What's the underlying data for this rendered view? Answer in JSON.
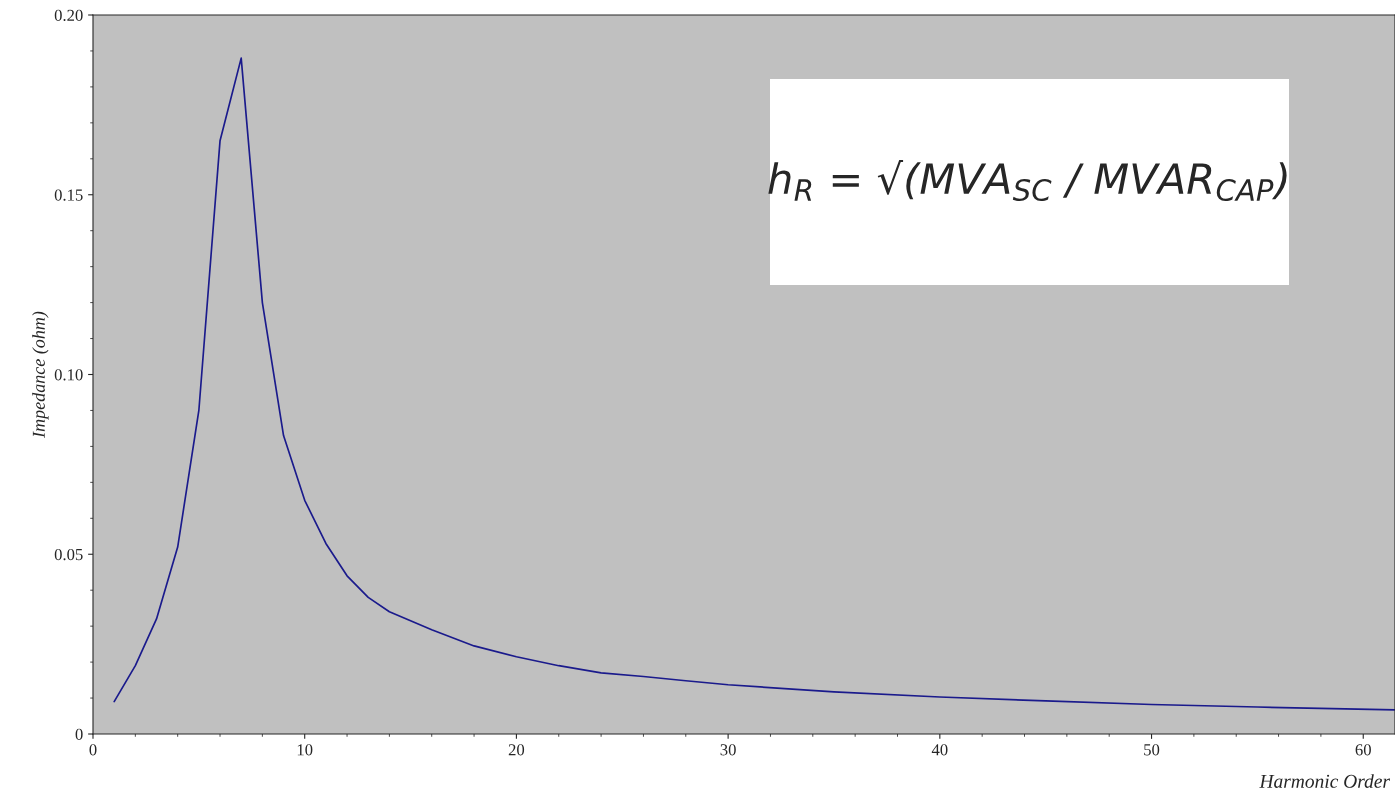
{
  "chart_data": {
    "type": "line",
    "xlabel": "Harmonic Order",
    "ylabel": "Impedance (ohm)",
    "series": [
      {
        "color": "#1a1a8c",
        "x": [
          1,
          2,
          3,
          4,
          5,
          6,
          7,
          8,
          9,
          10,
          11,
          12,
          13,
          14,
          16,
          18,
          20,
          22,
          24,
          26,
          28,
          30,
          35,
          40,
          45,
          50,
          55,
          61.5
        ],
        "values": [
          0.009,
          0.019,
          0.032,
          0.052,
          0.09,
          0.165,
          0.188,
          0.12,
          0.083,
          0.065,
          0.053,
          0.044,
          0.038,
          0.034,
          0.029,
          0.0245,
          0.0215,
          0.019,
          0.017,
          0.016,
          0.0148,
          0.0137,
          0.0117,
          0.0103,
          0.0092,
          0.0082,
          0.0075,
          0.0067
        ]
      }
    ],
    "xlim": [
      0,
      61.5
    ],
    "xticks": [
      0,
      10,
      20,
      30,
      40,
      50,
      60
    ],
    "ylim": [
      0,
      0.2
    ],
    "yticks": [
      0,
      {
        "value": 0.05,
        "label": "0.05"
      },
      {
        "value": 0.1,
        "label": "0.10"
      },
      {
        "value": 0.15,
        "label": "0.15"
      },
      {
        "value": 0.2,
        "label": "0.20"
      }
    ],
    "grid": false,
    "marker": "none",
    "line_style": "solid",
    "annotations": [
      "h$_{R}$ = √(MVA$_{SC}$ / MVAR$_{CAP}$)"
    ]
  }
}
